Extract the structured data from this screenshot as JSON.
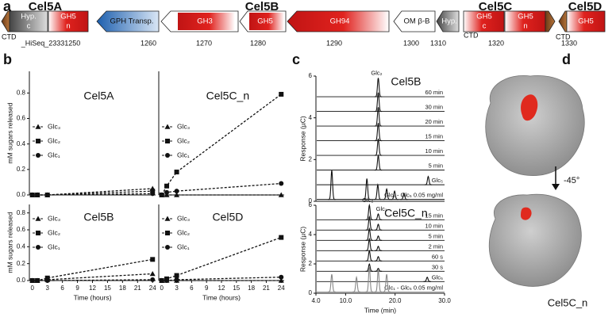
{
  "panel_labels": [
    "a",
    "b",
    "c",
    "d"
  ],
  "gene_map": {
    "genes": [
      "Cel5A",
      "Cel5B",
      "Cel5C",
      "Cel5D"
    ],
    "domains": [
      "Hyp.",
      "c",
      "GH5",
      "n",
      "GPH Transp.",
      "GH3",
      "GH5",
      "GH94",
      "OM β-B",
      "Hyp.",
      "GH5",
      "c",
      "GH5",
      "n",
      "GH5"
    ],
    "ctd": [
      "CTD",
      "CTD",
      "CTD"
    ],
    "loci": [
      "_HiSeq_23331250",
      "1260",
      "1270",
      "1280",
      "1290",
      "1300",
      "1310",
      "1320",
      "1330"
    ]
  },
  "chart_data": [
    {
      "type": "line",
      "title": "Cel5A",
      "ylabel": "mM sugars released",
      "x": [
        0,
        1,
        3,
        24
      ],
      "xlim": [
        -0.6,
        24.6
      ],
      "ylim": [
        0,
        0.97
      ],
      "yticks": [
        {
          "value": 0,
          "label": "0.0"
        },
        0.2,
        0.4,
        0.6,
        0.8
      ],
      "series": [
        {
          "name": "Glc₃",
          "marker": "triangle",
          "color": "#111",
          "values": [
            0,
            0,
            0,
            0.05
          ]
        },
        {
          "name": "Glc₂",
          "marker": "square",
          "color": "#111",
          "values": [
            0,
            0,
            0,
            0.03
          ]
        },
        {
          "name": "Glc₁",
          "marker": "circle",
          "color": "#111",
          "values": [
            0,
            0,
            0,
            0.01
          ]
        }
      ]
    },
    {
      "type": "line",
      "title": "Cel5C_n",
      "x": [
        0,
        1,
        3,
        24
      ],
      "xlim": [
        -0.6,
        24.6
      ],
      "ylim": [
        0,
        0.97
      ],
      "series": [
        {
          "name": "Glc₃",
          "marker": "triangle",
          "color": "#111",
          "values": [
            0,
            0,
            0,
            0
          ]
        },
        {
          "name": "Glc₂",
          "marker": "square",
          "color": "#111",
          "values": [
            0,
            0.07,
            0.18,
            0.79
          ]
        },
        {
          "name": "Glc₁",
          "marker": "circle",
          "color": "#111",
          "values": [
            0,
            0.02,
            0.03,
            0.09
          ]
        }
      ]
    },
    {
      "type": "line",
      "title": "Cel5B",
      "ylabel": "mM sugars released",
      "xlabel": "Time (hours)",
      "x": [
        0,
        1,
        3,
        24
      ],
      "xlim": [
        -0.6,
        24.6
      ],
      "ylim": [
        0,
        0.9
      ],
      "yticks": [
        {
          "value": 0,
          "label": "0.0"
        },
        0.2,
        0.4,
        0.6,
        0.8
      ],
      "xticks": [
        0,
        3,
        6,
        9,
        12,
        15,
        18,
        21,
        24
      ],
      "series": [
        {
          "name": "Glc₃",
          "marker": "triangle",
          "color": "#111",
          "values": [
            0,
            0,
            0.01,
            0.08
          ]
        },
        {
          "name": "Glc₂",
          "marker": "square",
          "color": "#111",
          "values": [
            0,
            0,
            0.03,
            0.25
          ]
        },
        {
          "name": "Glc₁",
          "marker": "circle",
          "color": "#111",
          "values": [
            0,
            0,
            0,
            0.01
          ]
        }
      ]
    },
    {
      "type": "line",
      "title": "Cel5D",
      "xlabel": "Time (hours)",
      "x": [
        0,
        1,
        3,
        24
      ],
      "xlim": [
        -0.6,
        24.6
      ],
      "ylim": [
        0,
        0.9
      ],
      "xticks": [
        0,
        3,
        6,
        9,
        12,
        15,
        18,
        21,
        24
      ],
      "series": [
        {
          "name": "Glc₃",
          "marker": "triangle",
          "color": "#111",
          "values": [
            0,
            0,
            0,
            0
          ]
        },
        {
          "name": "Glc₂",
          "marker": "square",
          "color": "#111",
          "values": [
            0,
            0.02,
            0.06,
            0.51
          ]
        },
        {
          "name": "Glc₁",
          "marker": "circle",
          "color": "#111",
          "values": [
            0,
            0,
            0.01,
            0.04
          ]
        }
      ]
    },
    {
      "type": "chromatogram",
      "title": "Cel5B",
      "ylabel": "Response (µC)",
      "xlim": [
        4,
        30
      ],
      "ylim": [
        0,
        6
      ],
      "yticks": [
        0,
        2,
        4,
        6
      ],
      "annotations": [
        "Glc₂"
      ],
      "series": [
        {
          "name": "60 min",
          "color": "#111",
          "x": [
            16.6
          ],
          "values": [
            0.9
          ]
        },
        {
          "name": "30 min",
          "color": "#111",
          "x": [
            16.6
          ],
          "values": [
            0.9
          ]
        },
        {
          "name": "20 min",
          "color": "#111",
          "x": [
            16.6
          ],
          "values": [
            0.9
          ]
        },
        {
          "name": "15 min",
          "color": "#111",
          "x": [
            16.6
          ],
          "values": [
            0.85
          ]
        },
        {
          "name": "10 min",
          "color": "#111",
          "x": [
            16.6
          ],
          "values": [
            0.8
          ]
        },
        {
          "name": "5 min",
          "color": "#111",
          "x": [
            16.6
          ],
          "values": [
            0.7
          ]
        },
        {
          "name": "Glc₅",
          "color": "#111",
          "x": [
            26.7
          ],
          "values": [
            0.4
          ]
        },
        {
          "name": "Glc₁ - Glc₅ 0.05 mg/ml",
          "color": "#111",
          "x": [
            7.2,
            14.3,
            16.5,
            18.3,
            19.9,
            21.8
          ],
          "values": [
            1.4,
            1.0,
            0.7,
            0.5,
            0.4,
            0.3
          ]
        }
      ]
    },
    {
      "type": "chromatogram",
      "title": "Cel5C_n",
      "ylabel": "Response (µC)",
      "xlabel": "Time (min)",
      "xlim": [
        4,
        30
      ],
      "ylim": [
        0,
        6
      ],
      "yticks": [
        0,
        2,
        4,
        6
      ],
      "xticks": [
        {
          "value": 4,
          "label": "4.0"
        },
        {
          "value": 10,
          "label": "10.0"
        },
        {
          "value": 20,
          "label": "20.0"
        },
        {
          "value": 30,
          "label": "30.0"
        }
      ],
      "annotations": [
        "Glc₂",
        "Glc₁"
      ],
      "series": [
        {
          "name": "15 min",
          "color": "#111",
          "x": [
            14.8,
            16.6
          ],
          "values": [
            1.0,
            0.4
          ]
        },
        {
          "name": "10 min",
          "color": "#111",
          "x": [
            14.8,
            16.6
          ],
          "values": [
            0.9,
            0.4
          ]
        },
        {
          "name": "5 min",
          "color": "#111",
          "x": [
            14.8,
            16.6
          ],
          "values": [
            0.8,
            0.3
          ]
        },
        {
          "name": "2 min",
          "color": "#111",
          "x": [
            14.8,
            16.6
          ],
          "values": [
            0.8,
            0.3
          ]
        },
        {
          "name": "60 s",
          "color": "#111",
          "x": [
            14.8,
            16.6
          ],
          "values": [
            0.7,
            0.3
          ]
        },
        {
          "name": "30 s",
          "color": "#111",
          "x": [
            14.8,
            16.6
          ],
          "values": [
            0.5,
            0.2
          ]
        },
        {
          "name": "Glc₅",
          "color": "#111",
          "x": [
            26.5
          ],
          "values": [
            0.3
          ]
        },
        {
          "name": "Glc₁ - Glc₅ 0.05 mg/ml",
          "color": "#888",
          "x": [
            7.2,
            12.2,
            14.8,
            16.6,
            18.3
          ],
          "values": [
            1.2,
            1.0,
            1.7,
            1.5,
            1.2
          ]
        }
      ]
    }
  ],
  "structure": {
    "title": "Cel5C_n",
    "rotation": "-45°"
  }
}
